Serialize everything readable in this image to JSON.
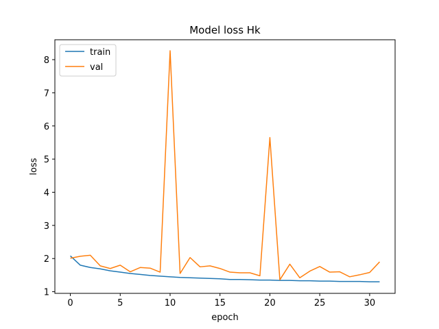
{
  "chart_data": {
    "type": "line",
    "title": "Model loss Hk",
    "xlabel": "epoch",
    "ylabel": "loss",
    "xlim": [
      -1.55,
      32.55
    ],
    "ylim": [
      0.95,
      8.6
    ],
    "xticks": [
      0,
      5,
      10,
      15,
      20,
      25,
      30
    ],
    "yticks": [
      1,
      2,
      3,
      4,
      5,
      6,
      7,
      8
    ],
    "grid": false,
    "legend_position": "top-left",
    "x": [
      0,
      1,
      2,
      3,
      4,
      5,
      6,
      7,
      8,
      9,
      10,
      11,
      12,
      13,
      14,
      15,
      16,
      17,
      18,
      19,
      20,
      21,
      22,
      23,
      24,
      25,
      26,
      27,
      28,
      29,
      30,
      31
    ],
    "series": [
      {
        "name": "train",
        "color": "#1f77b4",
        "values": [
          2.08,
          1.8,
          1.73,
          1.69,
          1.63,
          1.59,
          1.55,
          1.52,
          1.49,
          1.47,
          1.45,
          1.43,
          1.42,
          1.41,
          1.4,
          1.39,
          1.37,
          1.37,
          1.36,
          1.35,
          1.35,
          1.34,
          1.34,
          1.33,
          1.33,
          1.32,
          1.32,
          1.31,
          1.31,
          1.31,
          1.3,
          1.3
        ]
      },
      {
        "name": "val",
        "color": "#ff7f0e",
        "values": [
          2.01,
          2.07,
          2.1,
          1.78,
          1.7,
          1.8,
          1.6,
          1.73,
          1.71,
          1.59,
          8.27,
          1.55,
          2.03,
          1.75,
          1.78,
          1.7,
          1.59,
          1.57,
          1.57,
          1.48,
          5.65,
          1.36,
          1.83,
          1.42,
          1.62,
          1.76,
          1.59,
          1.6,
          1.45,
          1.51,
          1.58,
          1.9
        ]
      }
    ]
  }
}
